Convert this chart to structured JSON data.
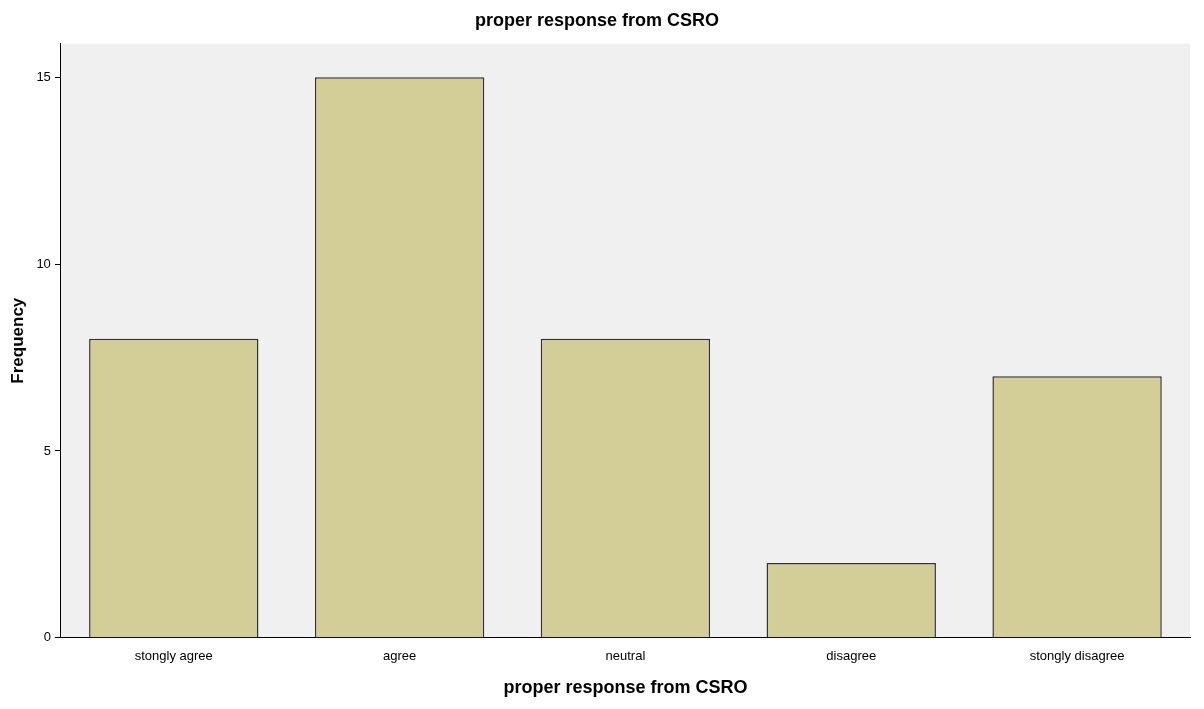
{
  "chart_data": {
    "type": "bar",
    "title": "proper response from CSRO",
    "xlabel": "proper response from CSRO",
    "ylabel": "Frequency",
    "categories": [
      "stongly agree",
      "agree",
      "neutral",
      "disagree",
      "stongly disagree"
    ],
    "values": [
      8,
      15,
      8,
      2,
      7
    ],
    "color": "#d3cd98",
    "ylim": [
      0,
      15.9
    ],
    "yticks": [
      0,
      5,
      10,
      15
    ]
  }
}
